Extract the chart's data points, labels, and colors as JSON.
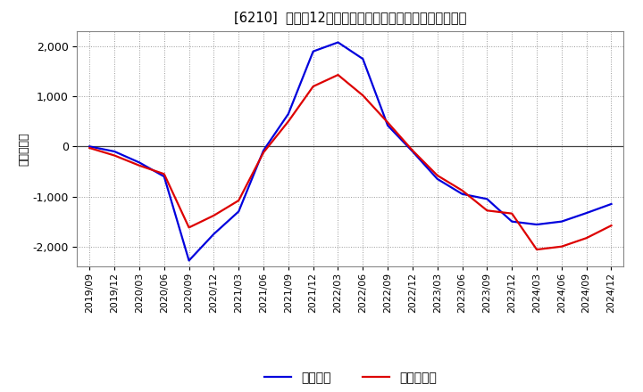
{
  "title": "[6210]  利益の12か月移動合計の対前年同期増減額の推移",
  "ylabel": "（百万円）",
  "background_color": "#ffffff",
  "plot_bg_color": "#ffffff",
  "grid_color": "#999999",
  "line_blue_color": "#0000dd",
  "line_red_color": "#dd0000",
  "legend_blue": "経常利益",
  "legend_red": "当期純利益",
  "ylim": [
    -2400,
    2300
  ],
  "yticks": [
    -2000,
    -1000,
    0,
    1000,
    2000
  ],
  "x_labels": [
    "2019/09",
    "2019/12",
    "2020/03",
    "2020/06",
    "2020/09",
    "2020/12",
    "2021/03",
    "2021/06",
    "2021/09",
    "2021/12",
    "2022/03",
    "2022/06",
    "2022/09",
    "2022/12",
    "2023/03",
    "2023/06",
    "2023/09",
    "2023/12",
    "2024/03",
    "2024/06",
    "2024/09",
    "2024/12"
  ],
  "blue_y": [
    0,
    -100,
    -320,
    -600,
    -2280,
    -1750,
    -1300,
    -80,
    650,
    1900,
    2080,
    1750,
    420,
    -100,
    -650,
    -950,
    -1050,
    -1500,
    -1560,
    -1500,
    -1330,
    -1150
  ],
  "red_y": [
    -30,
    -180,
    -380,
    -550,
    -1620,
    -1380,
    -1080,
    -120,
    500,
    1200,
    1430,
    1020,
    480,
    -80,
    -580,
    -880,
    -1280,
    -1340,
    -2060,
    -2000,
    -1830,
    -1580
  ]
}
